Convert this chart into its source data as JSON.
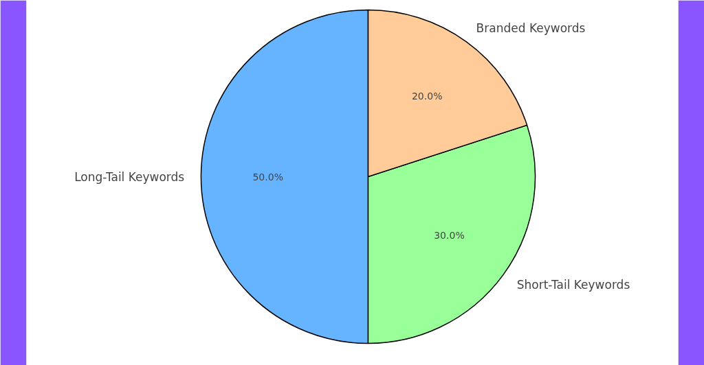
{
  "chart_data": {
    "type": "pie",
    "categories": [
      "Long-Tail Keywords",
      "Short-Tail Keywords",
      "Branded Keywords"
    ],
    "values": [
      50.0,
      30.0,
      20.0
    ],
    "colors": [
      "#66b3ff",
      "#99ff99",
      "#ffcc99"
    ],
    "value_labels": [
      "50.0%",
      "30.0%",
      "20.0%"
    ]
  }
}
